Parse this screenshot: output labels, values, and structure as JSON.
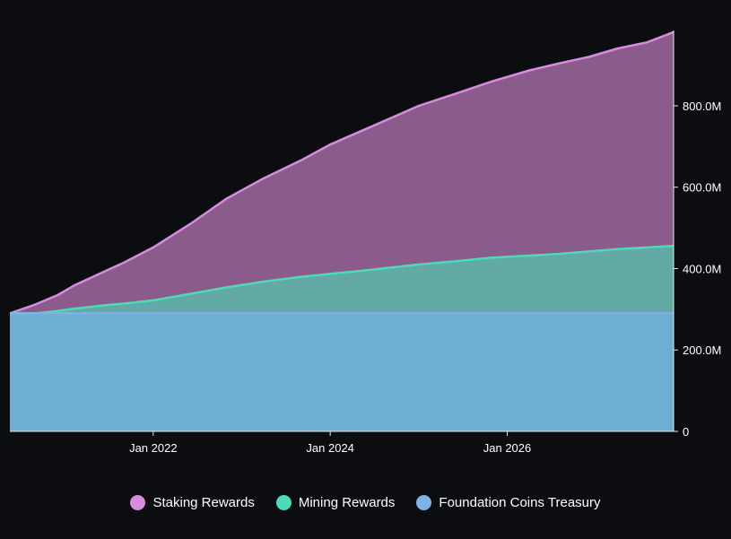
{
  "chart_data": {
    "type": "area",
    "stacked": false,
    "x_start_year": 2020.38,
    "x_end_year": 2027.88,
    "x_ticks": [
      "Jan 2022",
      "Jan 2024",
      "Jan 2026"
    ],
    "y_ticks": [
      "0",
      "200.0M",
      "400.0M",
      "600.0M",
      "800.0M"
    ],
    "ylim": [
      0,
      985
    ],
    "y_unit": "M",
    "grid": false,
    "legend_position": "bottom",
    "x": [
      2020.38,
      2020.67,
      2020.92,
      2021.12,
      2021.33,
      2021.5,
      2021.67,
      2022.0,
      2022.42,
      2022.83,
      2023.25,
      2023.67,
      2024.0,
      2024.5,
      2025.0,
      2025.42,
      2025.83,
      2026.25,
      2026.58,
      2026.92,
      2027.25,
      2027.58,
      2027.88
    ],
    "series": [
      {
        "name": "Staking Rewards",
        "color": "#d98be0",
        "fill": "#8b5b8c",
        "values": [
          290,
          312,
          335,
          360,
          381,
          398,
          415,
          452,
          510,
          572,
          622,
          666,
          705,
          752,
          800,
          830,
          860,
          887,
          904,
          920,
          941,
          956,
          981
        ]
      },
      {
        "name": "Mining Rewards",
        "color": "#4fd9b8",
        "fill": "#63a9a6",
        "values": [
          290,
          290,
          296,
          302,
          307,
          311,
          314,
          322,
          338,
          354,
          368,
          380,
          387,
          398,
          410,
          418,
          427,
          432,
          436,
          442,
          448,
          452,
          456
        ]
      },
      {
        "name": "Foundation Coins Treasury",
        "color": "#7fb3e6",
        "fill": "#6eaed3",
        "values": [
          290,
          290,
          290,
          290,
          290,
          290,
          290,
          290,
          290,
          290,
          290,
          290,
          290,
          290,
          290,
          290,
          290,
          290,
          290,
          290,
          290,
          290,
          290
        ]
      }
    ]
  }
}
